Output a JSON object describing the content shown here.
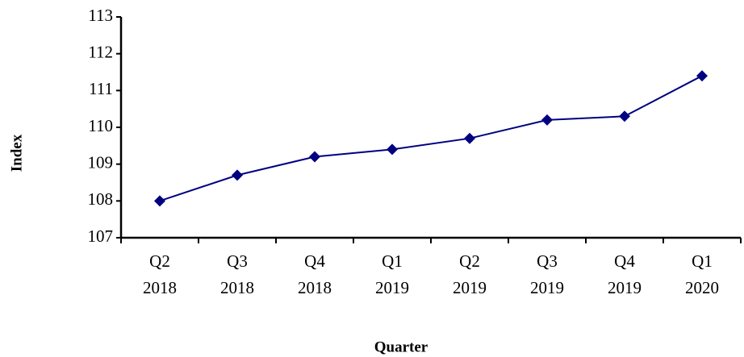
{
  "chart_data": {
    "type": "line",
    "x_label": "Quarter",
    "y_label": "Index",
    "categories": [
      [
        "Q2",
        "2018"
      ],
      [
        "Q3",
        "2018"
      ],
      [
        "Q4",
        "2018"
      ],
      [
        "Q1",
        "2019"
      ],
      [
        "Q2",
        "2019"
      ],
      [
        "Q3",
        "2019"
      ],
      [
        "Q4",
        "2019"
      ],
      [
        "Q1",
        "2020"
      ]
    ],
    "series": [
      {
        "name": "Index",
        "color": "#000080",
        "values": [
          108.0,
          108.7,
          109.2,
          109.4,
          109.7,
          110.2,
          110.3,
          111.4
        ]
      }
    ],
    "ylim": [
      107,
      113
    ],
    "yticks": [
      107,
      108,
      109,
      110,
      111,
      112,
      113
    ],
    "grid": false
  }
}
